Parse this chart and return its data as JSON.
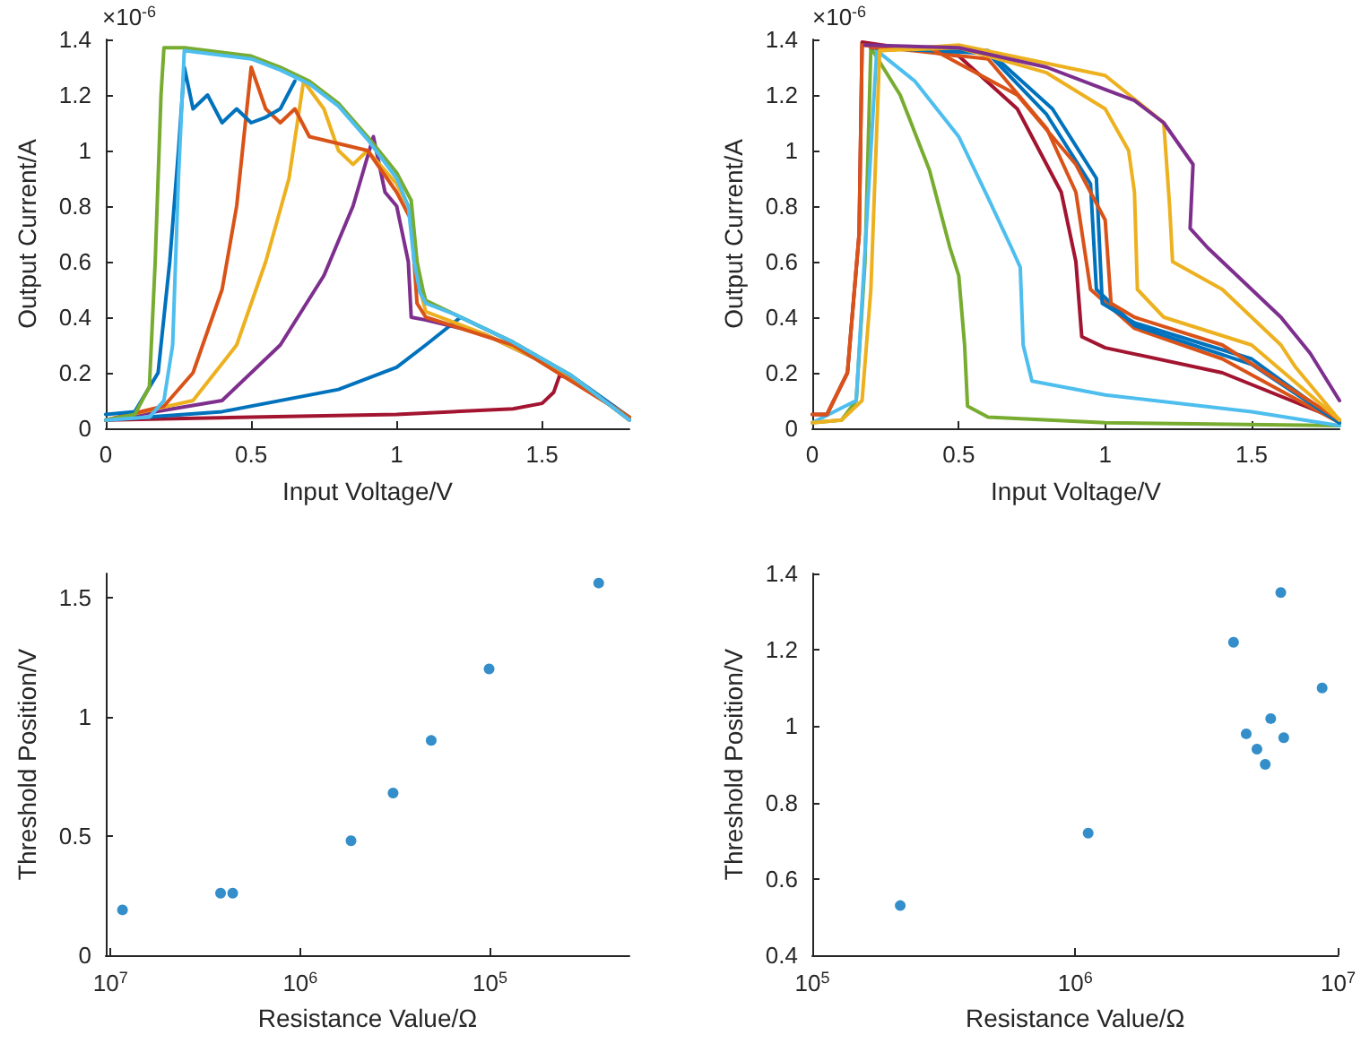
{
  "chart_data": [
    {
      "type": "line",
      "xlabel": "Input Voltage/V",
      "ylabel": "Output Current/A",
      "annotations": [
        "×10$^{-6}$"
      ],
      "xlim": [
        0,
        1.8
      ],
      "xticks": [
        0,
        0.5,
        1,
        1.5
      ],
      "ylim": [
        0,
        1.4
      ],
      "yticks": [
        0,
        0.2,
        0.4,
        0.6,
        0.8,
        1,
        1.2,
        1.4
      ],
      "marker": "none",
      "line_style": "solid",
      "series": [
        {
          "color": "#a2142f",
          "x": [
            0,
            0.5,
            1.0,
            1.4,
            1.5,
            1.54,
            1.56,
            1.6,
            1.7,
            1.8
          ],
          "values": [
            0.03,
            0.04,
            0.05,
            0.07,
            0.09,
            0.13,
            0.19,
            0.18,
            0.11,
            0.03
          ]
        },
        {
          "color": "#0072bd",
          "x": [
            0,
            0.4,
            0.8,
            1.0,
            1.1,
            1.22,
            1.4,
            1.6,
            1.8
          ],
          "values": [
            0.03,
            0.06,
            0.14,
            0.22,
            0.3,
            0.4,
            0.31,
            0.19,
            0.04
          ]
        },
        {
          "color": "#7e2f8e",
          "x": [
            0,
            0.4,
            0.6,
            0.75,
            0.85,
            0.92,
            0.96,
            1.0,
            1.04,
            1.05,
            1.1,
            1.3,
            1.5,
            1.6,
            1.8
          ],
          "values": [
            0.03,
            0.1,
            0.3,
            0.55,
            0.8,
            1.05,
            0.85,
            0.8,
            0.6,
            0.4,
            0.39,
            0.34,
            0.24,
            0.18,
            0.04
          ]
        },
        {
          "color": "#edb120",
          "x": [
            0,
            0.3,
            0.45,
            0.55,
            0.63,
            0.68,
            0.75,
            0.8,
            0.85,
            0.9,
            1.0,
            1.05,
            1.08,
            1.1,
            1.3,
            1.5,
            1.8
          ],
          "values": [
            0.03,
            0.1,
            0.3,
            0.6,
            0.9,
            1.25,
            1.15,
            1.0,
            0.95,
            1.0,
            0.88,
            0.78,
            0.5,
            0.42,
            0.34,
            0.24,
            0.04
          ]
        },
        {
          "color": "#d95319",
          "x": [
            0,
            0.2,
            0.3,
            0.4,
            0.45,
            0.48,
            0.5,
            0.55,
            0.6,
            0.65,
            0.7,
            0.9,
            1.0,
            1.05,
            1.07,
            1.1,
            1.4,
            1.8
          ],
          "values": [
            0.03,
            0.08,
            0.2,
            0.5,
            0.8,
            1.1,
            1.3,
            1.15,
            1.1,
            1.15,
            1.05,
            1.0,
            0.85,
            0.75,
            0.45,
            0.4,
            0.3,
            0.04
          ]
        },
        {
          "color": "#0072bd",
          "x": [
            0,
            0.1,
            0.18,
            0.22,
            0.25,
            0.27,
            0.3,
            0.35,
            0.4,
            0.45,
            0.5,
            0.55,
            0.6,
            0.65
          ],
          "values": [
            0.05,
            0.06,
            0.2,
            0.6,
            1.0,
            1.3,
            1.15,
            1.2,
            1.1,
            1.15,
            1.1,
            1.12,
            1.15,
            1.25
          ]
        },
        {
          "color": "#77ac30",
          "x": [
            0,
            0.1,
            0.15,
            0.17,
            0.19,
            0.2,
            0.27,
            0.5,
            0.6,
            0.7,
            0.8,
            0.9,
            1.0,
            1.05,
            1.07,
            1.09,
            1.1,
            1.2,
            1.3,
            1.4,
            1.5,
            1.6,
            1.7,
            1.8
          ],
          "values": [
            0.03,
            0.05,
            0.15,
            0.6,
            1.2,
            1.37,
            1.37,
            1.34,
            1.3,
            1.25,
            1.17,
            1.05,
            0.92,
            0.82,
            0.6,
            0.5,
            0.46,
            0.41,
            0.36,
            0.31,
            0.25,
            0.19,
            0.11,
            0.03
          ]
        },
        {
          "color": "#4dbeee",
          "x": [
            0,
            0.15,
            0.2,
            0.23,
            0.25,
            0.27,
            0.5,
            0.6,
            0.7,
            0.8,
            0.9,
            1.0,
            1.04,
            1.06,
            1.08,
            1.1,
            1.2,
            1.3,
            1.4,
            1.5,
            1.6,
            1.7,
            1.8
          ],
          "values": [
            0.03,
            0.04,
            0.1,
            0.3,
            0.9,
            1.36,
            1.33,
            1.29,
            1.24,
            1.16,
            1.04,
            0.9,
            0.8,
            0.6,
            0.49,
            0.45,
            0.41,
            0.36,
            0.31,
            0.25,
            0.19,
            0.11,
            0.03
          ]
        }
      ]
    },
    {
      "type": "line",
      "xlabel": "Input Voltage/V",
      "ylabel": "Output Current/A",
      "annotations": [
        "×10$^{-6}$"
      ],
      "xlim": [
        0,
        1.8
      ],
      "xticks": [
        0,
        0.5,
        1,
        1.5
      ],
      "ylim": [
        0,
        1.4
      ],
      "yticks": [
        0,
        0.2,
        0.4,
        0.6,
        0.8,
        1,
        1.2,
        1.4
      ],
      "marker": "none",
      "line_style": "solid",
      "series": [
        {
          "color": "#77ac30",
          "x": [
            0,
            0.1,
            0.15,
            0.18,
            0.2,
            0.3,
            0.4,
            0.47,
            0.5,
            0.52,
            0.53,
            0.6,
            1.0,
            1.8
          ],
          "values": [
            0.02,
            0.03,
            0.1,
            0.6,
            1.37,
            1.2,
            0.93,
            0.65,
            0.55,
            0.3,
            0.08,
            0.04,
            0.02,
            0.01
          ]
        },
        {
          "color": "#4dbeee",
          "x": [
            0,
            0.15,
            0.2,
            0.22,
            0.35,
            0.5,
            0.6,
            0.68,
            0.71,
            0.72,
            0.75,
            1.0,
            1.5,
            1.8
          ],
          "values": [
            0.02,
            0.1,
            1.0,
            1.36,
            1.25,
            1.05,
            0.83,
            0.65,
            0.58,
            0.3,
            0.17,
            0.12,
            0.06,
            0.01
          ]
        },
        {
          "color": "#a2142f",
          "x": [
            0,
            0.05,
            0.12,
            0.16,
            0.17,
            0.5,
            0.7,
            0.85,
            0.9,
            0.92,
            1.0,
            1.4,
            1.8
          ],
          "values": [
            0.05,
            0.05,
            0.2,
            0.7,
            1.39,
            1.34,
            1.15,
            0.85,
            0.6,
            0.33,
            0.29,
            0.2,
            0.03
          ]
        },
        {
          "color": "#d95319",
          "x": [
            0,
            0.05,
            0.12,
            0.16,
            0.17,
            0.6,
            0.8,
            0.9,
            0.95,
            1.1,
            1.4,
            1.8
          ],
          "values": [
            0.05,
            0.05,
            0.2,
            0.7,
            1.38,
            1.33,
            1.08,
            0.85,
            0.5,
            0.36,
            0.25,
            0.02
          ]
        },
        {
          "color": "#0072bd",
          "x": [
            0.2,
            0.6,
            0.8,
            0.95,
            0.97,
            1.1,
            1.5,
            1.8
          ],
          "values": [
            1.37,
            1.35,
            1.13,
            0.88,
            0.5,
            0.37,
            0.23,
            0.02
          ]
        },
        {
          "color": "#0072bd",
          "x": [
            0.2,
            0.6,
            0.82,
            0.97,
            0.99,
            1.1,
            1.5,
            1.8
          ],
          "values": [
            1.37,
            1.36,
            1.15,
            0.9,
            0.45,
            0.38,
            0.25,
            0.02
          ]
        },
        {
          "color": "#d95319",
          "x": [
            0.2,
            0.4,
            0.7,
            0.9,
            1.0,
            1.02,
            1.1,
            1.4,
            1.8
          ],
          "values": [
            1.37,
            1.37,
            1.2,
            0.95,
            0.75,
            0.45,
            0.4,
            0.3,
            0.03
          ]
        },
        {
          "color": "#edb120",
          "x": [
            0,
            0.1,
            0.17,
            0.2,
            0.23,
            0.5,
            0.8,
            1.0,
            1.08,
            1.1,
            1.11,
            1.2,
            1.5,
            1.8
          ],
          "values": [
            0.02,
            0.03,
            0.1,
            0.5,
            1.36,
            1.37,
            1.28,
            1.15,
            1.0,
            0.85,
            0.5,
            0.4,
            0.3,
            0.03
          ]
        },
        {
          "color": "#edb120",
          "x": [
            0.23,
            0.5,
            1.0,
            1.2,
            1.22,
            1.23,
            1.4,
            1.6,
            1.65,
            1.8
          ],
          "values": [
            1.36,
            1.38,
            1.27,
            1.1,
            0.8,
            0.6,
            0.5,
            0.3,
            0.22,
            0.03
          ]
        },
        {
          "color": "#7e2f8e",
          "x": [
            0.18,
            0.5,
            0.8,
            1.0,
            1.1,
            1.2,
            1.3,
            1.29,
            1.35,
            1.5,
            1.6,
            1.7,
            1.8
          ],
          "values": [
            1.38,
            1.37,
            1.3,
            1.22,
            1.18,
            1.1,
            0.95,
            0.72,
            0.65,
            0.5,
            0.4,
            0.27,
            0.1
          ]
        }
      ]
    },
    {
      "type": "scatter",
      "xlabel": "Resistance Value/Ω",
      "ylabel": "Threshold Position/V",
      "log": "x",
      "xlim": [
        10600000,
        18400
      ],
      "xticks": [
        {
          "value": 10000000,
          "label": "10$^{7}$"
        },
        {
          "value": 1000000,
          "label": "10$^{6}$"
        },
        {
          "value": 100000,
          "label": "10$^{5}$"
        }
      ],
      "ylim": [
        0,
        1.6
      ],
      "yticks": [
        0,
        0.5,
        1,
        1.5
      ],
      "marker": "circle",
      "series": [
        {
          "color": "#0072bd",
          "x": [
            8650000,
            2630000,
            2270000,
            540000,
            324000,
            204000,
            101000,
            26700
          ],
          "values": [
            0.19,
            0.26,
            0.26,
            0.48,
            0.68,
            0.9,
            1.2,
            1.56
          ]
        }
      ]
    },
    {
      "type": "scatter",
      "xlabel": "Resistance Value/Ω",
      "ylabel": "Threshold Position/V",
      "log": "x",
      "xlim": [
        100000,
        10000000
      ],
      "xticks": [
        {
          "value": 100000,
          "label": "10$^{5}$"
        },
        {
          "value": 1000000,
          "label": "10$^{6}$"
        },
        {
          "value": 10000000,
          "label": "10$^{7}$"
        }
      ],
      "ylim": [
        0.4,
        1.4
      ],
      "yticks": [
        0.4,
        0.6,
        0.8,
        1,
        1.2,
        1.4
      ],
      "marker": "circle",
      "series": [
        {
          "color": "#0072bd",
          "x": [
            216000,
            1120000,
            4000000,
            6050000,
            4470000,
            4910000,
            5280000,
            5540000,
            6210000,
            8690000
          ],
          "values": [
            0.53,
            0.72,
            1.22,
            1.35,
            0.98,
            0.94,
            0.9,
            1.02,
            0.97,
            1.1
          ]
        }
      ]
    }
  ]
}
